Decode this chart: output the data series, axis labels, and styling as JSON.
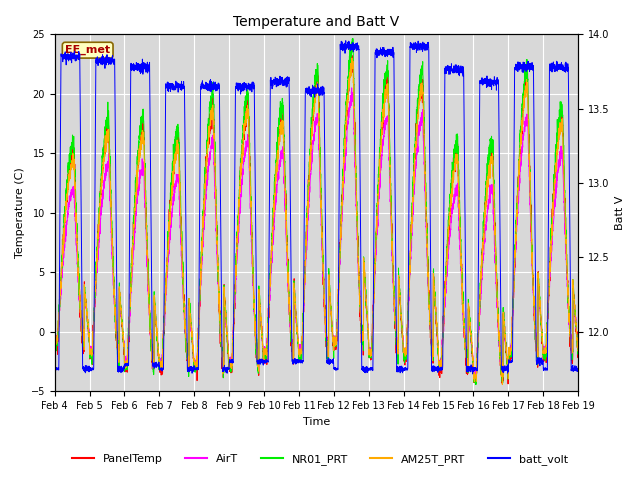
{
  "title": "Temperature and Batt V",
  "xlabel": "Time",
  "ylabel_left": "Temperature (C)",
  "ylabel_right": "Batt V",
  "annotation": "EE_met",
  "ylim_left": [
    -5,
    25
  ],
  "ylim_right": [
    11.6,
    14.0
  ],
  "date_labels": [
    "Feb 4",
    "Feb 5",
    "Feb 6",
    "Feb 7",
    "Feb 8",
    "Feb 9",
    "Feb 10",
    "Feb 11",
    "Feb 12",
    "Feb 13",
    "Feb 14",
    "Feb 15",
    "Feb 16",
    "Feb 17",
    "Feb 18",
    "Feb 19"
  ],
  "series_colors": {
    "PanelTemp": "#ff0000",
    "AirT": "#ff00ff",
    "NR01_PRT": "#00ee00",
    "AM25T_PRT": "#ffaa00",
    "batt_volt": "#0000ff"
  },
  "plot_facecolor": "#d8d8d8",
  "fig_facecolor": "#ffffff",
  "grid_color": "#ffffff",
  "title_fontsize": 10,
  "tick_fontsize": 7,
  "label_fontsize": 8,
  "legend_fontsize": 8,
  "day_peaks_temp": [
    15,
    17,
    17,
    16,
    19,
    19,
    18,
    21,
    23,
    21,
    21,
    15,
    15,
    21,
    18
  ],
  "day_lows_temp": [
    -1,
    -2,
    -3,
    -3,
    -3,
    -3,
    -2,
    -2,
    -1,
    -2,
    -2,
    -3,
    -4,
    -2,
    -2
  ],
  "day_peaks_batt": [
    13.85,
    13.82,
    13.78,
    13.65,
    13.65,
    13.65,
    13.68,
    13.62,
    13.92,
    13.88,
    13.92,
    13.76,
    13.68,
    13.78,
    13.78
  ],
  "day_lows_batt": [
    11.75,
    11.75,
    11.78,
    11.75,
    11.75,
    11.8,
    11.8,
    11.8,
    11.75,
    11.75,
    11.75,
    11.75,
    11.75,
    11.8,
    11.75
  ]
}
